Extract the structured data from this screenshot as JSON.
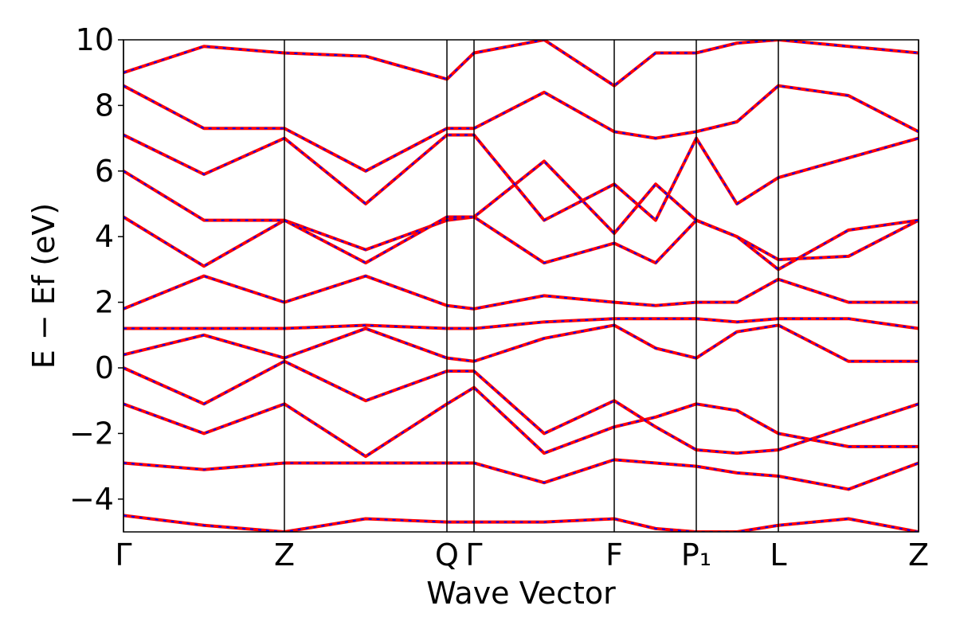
{
  "chart_data": {
    "type": "band-structure",
    "xlabel": "Wave Vector",
    "ylabel": "E − Ef (eV)",
    "x": [
      0,
      101,
      202,
      304,
      406,
      440,
      528,
      616,
      668,
      719,
      770,
      822,
      910,
      998
    ],
    "xlim": [
      0,
      998
    ],
    "xticks": [
      {
        "value": 0,
        "label": "Γ"
      },
      {
        "value": 202,
        "label": "Z"
      },
      {
        "value": 406,
        "label": "Q"
      },
      {
        "value": 440,
        "label": "Γ"
      },
      {
        "value": 616,
        "label": "F"
      },
      {
        "value": 719,
        "label": "P₁"
      },
      {
        "value": 822,
        "label": "L"
      },
      {
        "value": 998,
        "label": "Z"
      }
    ],
    "ylim": [
      -5,
      10
    ],
    "yticks": [
      {
        "value": -4,
        "label": "−4"
      },
      {
        "value": -2,
        "label": "−2"
      },
      0,
      2,
      4,
      6,
      8,
      10
    ],
    "line_color": "#ff0000",
    "dash_color": "#0000ff",
    "bands": [
      [
        -4.5,
        -4.8,
        -5,
        -4.6,
        -4.7,
        -4.7,
        -4.7,
        -4.6,
        -4.9,
        -5,
        -5,
        -4.8,
        -4.6,
        -5
      ],
      [
        -2.9,
        -3.1,
        -2.9,
        -2.9,
        -2.9,
        -2.9,
        -3.5,
        -2.8,
        -2.9,
        -3.0,
        -3.2,
        -3.3,
        -3.7,
        -2.9
      ],
      [
        -1.1,
        -2.0,
        -1.1,
        -2.7,
        -1.1,
        -0.6,
        -2.6,
        -1.8,
        -1.5,
        -1.1,
        -1.3,
        -2.0,
        -2.4,
        -2.4
      ],
      [
        0,
        -1.1,
        0.2,
        -1.0,
        -0.1,
        -0.1,
        -2.0,
        -1.0,
        -1.8,
        -2.5,
        -2.6,
        -2.5,
        -1.8,
        -1.1
      ],
      [
        0.4,
        1.0,
        0.3,
        1.2,
        0.3,
        0.2,
        0.9,
        1.3,
        0.6,
        0.3,
        1.1,
        1.3,
        0.2,
        0.2
      ],
      [
        1.2,
        1.2,
        1.2,
        1.3,
        1.2,
        1.2,
        1.4,
        1.5,
        1.5,
        1.5,
        1.4,
        1.5,
        1.5,
        1.2
      ],
      [
        1.8,
        2.8,
        2.0,
        2.8,
        1.9,
        1.8,
        2.2,
        2.0,
        1.9,
        2.0,
        2.0,
        2.7,
        2.0,
        2.0
      ],
      [
        4.6,
        3.1,
        4.5,
        3.6,
        4.5,
        4.6,
        3.2,
        3.8,
        3.2,
        4.5,
        4.0,
        3.3,
        3.4,
        4.5
      ],
      [
        6.0,
        4.5,
        4.5,
        3.2,
        4.6,
        4.6,
        6.3,
        4.1,
        5.6,
        4.5,
        4.0,
        3.0,
        4.2,
        4.5
      ],
      [
        7.1,
        5.9,
        7.0,
        5.0,
        7.1,
        7.1,
        4.5,
        5.6,
        4.5,
        7.0,
        5.0,
        5.8,
        6.4,
        7.0
      ],
      [
        8.6,
        7.3,
        7.3,
        6.0,
        7.3,
        7.3,
        8.4,
        7.2,
        7.0,
        7.2,
        7.5,
        8.6,
        8.3,
        7.2
      ],
      [
        9.0,
        9.8,
        9.6,
        9.5,
        8.8,
        9.6,
        10,
        8.6,
        9.6,
        9.6,
        9.9,
        10,
        9.8,
        9.6
      ]
    ]
  }
}
